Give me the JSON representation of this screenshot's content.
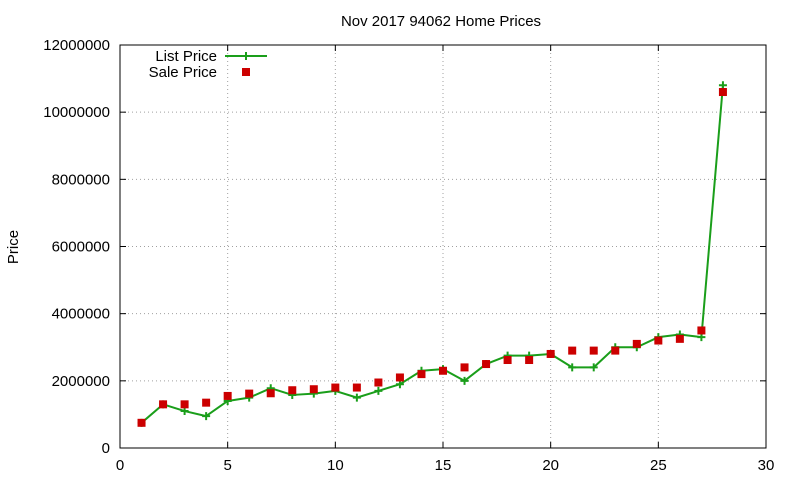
{
  "chart_data": {
    "type": "line",
    "title": "Nov 2017 94062 Home Prices",
    "xlabel": "",
    "ylabel": "Price",
    "xlim": [
      0,
      30
    ],
    "ylim": [
      0,
      12000000
    ],
    "x_ticks": [
      0,
      5,
      10,
      15,
      20,
      25,
      30
    ],
    "y_ticks": [
      0,
      2000000,
      4000000,
      6000000,
      8000000,
      10000000,
      12000000
    ],
    "grid": true,
    "legend_position": "top-left",
    "series": [
      {
        "name": "List Price",
        "style": "line-with-plus-markers",
        "color": "#1a9e1a",
        "x": [
          1,
          2,
          3,
          4,
          5,
          6,
          7,
          8,
          9,
          10,
          11,
          12,
          13,
          14,
          15,
          16,
          17,
          18,
          19,
          20,
          21,
          22,
          23,
          24,
          25,
          26,
          27,
          28
        ],
        "values": [
          750000,
          1300000,
          1100000,
          950000,
          1400000,
          1500000,
          1780000,
          1580000,
          1620000,
          1700000,
          1500000,
          1700000,
          1900000,
          2300000,
          2350000,
          2000000,
          2500000,
          2750000,
          2750000,
          2800000,
          2400000,
          2400000,
          3000000,
          3000000,
          3300000,
          3380000,
          3300000,
          10800000
        ]
      },
      {
        "name": "Sale Price",
        "style": "square-markers",
        "color": "#cc0000",
        "x": [
          1,
          2,
          3,
          4,
          5,
          6,
          7,
          8,
          9,
          10,
          11,
          12,
          13,
          14,
          15,
          16,
          17,
          18,
          19,
          20,
          21,
          22,
          23,
          24,
          25,
          26,
          27,
          28
        ],
        "values": [
          750000,
          1300000,
          1300000,
          1350000,
          1550000,
          1620000,
          1630000,
          1720000,
          1750000,
          1800000,
          1800000,
          1950000,
          2100000,
          2200000,
          2300000,
          2400000,
          2500000,
          2620000,
          2620000,
          2800000,
          2900000,
          2900000,
          2900000,
          3100000,
          3200000,
          3250000,
          3500000,
          10600000
        ]
      }
    ]
  }
}
